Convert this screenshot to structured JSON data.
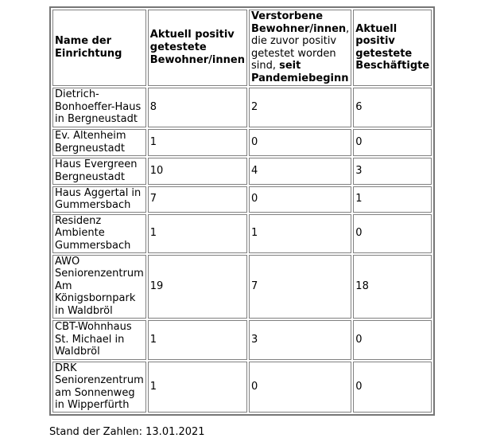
{
  "chart_data": {
    "type": "table",
    "columns": [
      "Name der Einrichtung",
      "Aktuell positiv getestete Bewohner/innen",
      "Verstorbene Bewohner/innen, die zuvor positiv getestet worden sind, seit Pandemiebeginn",
      "Aktuell positiv getestete Beschäftigte"
    ],
    "rows": [
      [
        "Dietrich-Bonhoeffer-Haus in Bergneustadt",
        8,
        2,
        6
      ],
      [
        "Ev. Altenheim Bergneustadt",
        1,
        0,
        0
      ],
      [
        "Haus Evergreen Bergneustadt",
        10,
        4,
        3
      ],
      [
        "Haus Aggertal in Gummersbach",
        7,
        0,
        1
      ],
      [
        "Residenz Ambiente Gummersbach",
        1,
        1,
        0
      ],
      [
        "AWO Seniorenzentrum Am Königsbornpark in Waldbröl",
        19,
        7,
        18
      ],
      [
        "CBT-Wohnhaus St. Michael in Waldbröl",
        1,
        3,
        0
      ],
      [
        "DRK Seniorenzentrum am Sonnenweg in Wipperfürth",
        1,
        0,
        0
      ]
    ],
    "footnote": "Stand der Zahlen: 13.01.2021"
  },
  "table": {
    "headers": {
      "facility_name": "Name der Einrichtung",
      "positive_residents": "Aktuell positiv getestete Bewohner/innen",
      "deceased_residents": {
        "bold_lead": "Verstorbene Bewohner/innen",
        "regular_middle": ", die zuvor positiv getestet worden sind, ",
        "bold_tail": "seit Pandemiebeginn"
      },
      "positive_staff": "Aktuell positiv getestete Beschäftigte"
    },
    "rows": [
      {
        "name": "Dietrich-Bonhoeffer-Haus in Bergneustadt",
        "positive_residents": "8",
        "deceased_since_pandemic": "2",
        "positive_staff": "6"
      },
      {
        "name": "Ev. Altenheim Bergneustadt",
        "positive_residents": "1",
        "deceased_since_pandemic": "0",
        "positive_staff": "0"
      },
      {
        "name": "Haus Evergreen Bergneustadt",
        "positive_residents": "10",
        "deceased_since_pandemic": "4",
        "positive_staff": "3"
      },
      {
        "name": "Haus Aggertal in Gummersbach",
        "positive_residents": "7",
        "deceased_since_pandemic": "0",
        "positive_staff": "1"
      },
      {
        "name": "Residenz Ambiente Gummersbach",
        "positive_residents": "1",
        "deceased_since_pandemic": "1",
        "positive_staff": "0"
      },
      {
        "name": "AWO Seniorenzentrum Am Königsbornpark in Waldbröl",
        "positive_residents": "19",
        "deceased_since_pandemic": "7",
        "positive_staff": "18"
      },
      {
        "name": "CBT-Wohnhaus St. Michael in Waldbröl",
        "positive_residents": "1",
        "deceased_since_pandemic": "3",
        "positive_staff": "0"
      },
      {
        "name": "DRK Seniorenzentrum am Sonnenweg in Wipperfürth",
        "positive_residents": "1",
        "deceased_since_pandemic": "0",
        "positive_staff": "0"
      }
    ]
  },
  "footer": {
    "text": "Stand der Zahlen: 13.01.2021"
  },
  "colors": {
    "text": "#000000",
    "border_frame": "#767676",
    "border_cell": "#808080",
    "background": "#ffffff"
  }
}
